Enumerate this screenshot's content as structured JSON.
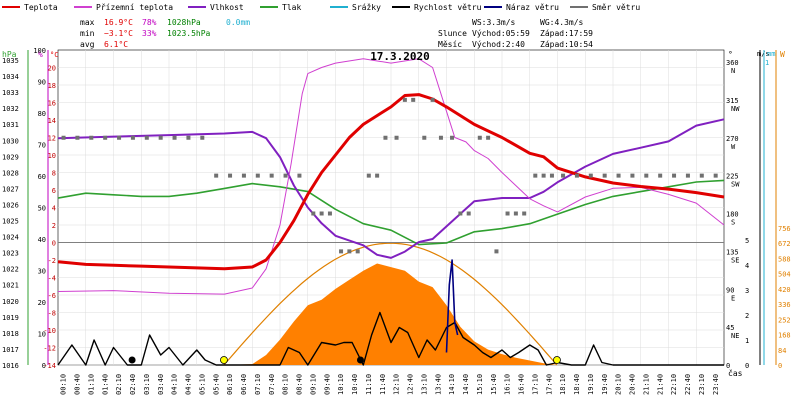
{
  "legend": {
    "items": [
      {
        "label": "Teplota",
        "color": "#e00000"
      },
      {
        "label": "Přízemní teplota",
        "color": "#d040d0"
      },
      {
        "label": "Vlhkost",
        "color": "#8020c0"
      },
      {
        "label": "Tlak",
        "color": "#30a030"
      },
      {
        "label": "Srážky",
        "color": "#20b0d0"
      },
      {
        "label": "Rychlost větru",
        "color": "#000000"
      },
      {
        "label": "Náraz větru",
        "color": "#000080"
      },
      {
        "label": "Směr větru",
        "color": "#707070"
      }
    ]
  },
  "stats": {
    "max": {
      "label": "max",
      "temp": "16.9°C",
      "hum": "78%",
      "press": "1028hPa",
      "rain": "0.0mm"
    },
    "min": {
      "label": "min",
      "temp": "−3.1°C",
      "hum": "33%",
      "press": "1023.5hPa"
    },
    "avg": {
      "label": "avg",
      "temp": "6.1°C"
    },
    "wind": {
      "ws": "WS:3.3m/s",
      "wg": "WG:4.3m/s"
    },
    "sun": {
      "label": "Slunce",
      "rise": "Východ:05:59",
      "set": "Západ:17:59"
    },
    "moon": {
      "label": "Měsíc",
      "rise": "Východ:2:40",
      "set": "Západ:10:54"
    }
  },
  "chart_data": {
    "type": "line",
    "title": "17.3.2020",
    "x_label": "čas",
    "x_ticks": [
      "00:10",
      "00:40",
      "01:10",
      "01:40",
      "02:10",
      "02:40",
      "03:10",
      "03:40",
      "04:10",
      "04:40",
      "05:10",
      "05:40",
      "06:10",
      "06:40",
      "07:10",
      "07:40",
      "08:10",
      "08:40",
      "09:10",
      "09:40",
      "10:10",
      "10:40",
      "11:10",
      "11:40",
      "12:10",
      "12:40",
      "13:10",
      "13:40",
      "14:10",
      "14:40",
      "15:10",
      "15:40",
      "16:10",
      "16:40",
      "17:10",
      "17:40",
      "18:10",
      "18:40",
      "19:10",
      "19:40",
      "20:10",
      "20:40",
      "21:10",
      "21:40",
      "22:10",
      "22:40",
      "23:10",
      "23:40"
    ],
    "axes": {
      "pressure_hpa": {
        "label": "hPa",
        "color": "#30a030",
        "ticks": [
          1016,
          1017,
          1018,
          1019,
          1020,
          1021,
          1022,
          1023,
          1024,
          1025,
          1026,
          1027,
          1028,
          1029,
          1030,
          1031,
          1032,
          1033,
          1034,
          1035
        ]
      },
      "humidity_pct": {
        "label": "%",
        "color": "#c000c0",
        "ticks": [
          0,
          10,
          20,
          30,
          40,
          50,
          60,
          70,
          80,
          90,
          100
        ]
      },
      "temperature_c": {
        "label": "°C",
        "color": "#e00000",
        "range": [
          -14,
          22
        ],
        "ticks": [
          -14,
          -12,
          -10,
          -8,
          -6,
          -4,
          -2,
          0,
          2,
          4,
          6,
          8,
          10,
          12,
          14,
          16,
          18,
          20
        ]
      },
      "wind_dir": {
        "label": "°",
        "ticks": [
          "0",
          "45",
          "90",
          "135",
          "180",
          "225",
          "270",
          "315",
          "360"
        ],
        "sub": [
          "",
          "NE",
          "E",
          "SE",
          "S",
          "SW",
          "W",
          "NW",
          "N"
        ]
      },
      "wind_ms": {
        "label": "m/s",
        "color": "#000000",
        "ticks": [
          0,
          1,
          2,
          3,
          4,
          5
        ]
      },
      "rain_mm": {
        "label": "mm",
        "color": "#20b0d0",
        "ticks": [
          1
        ]
      },
      "solar_w": {
        "label": "W",
        "color": "#e08000",
        "ticks": [
          0,
          84,
          168,
          252,
          336,
          420,
          504,
          588,
          672,
          756
        ]
      }
    },
    "series": [
      {
        "name": "Teplota",
        "color": "#e00000",
        "hours": [
          0,
          1,
          2,
          3,
          4,
          5,
          6,
          7,
          7.5,
          8,
          8.5,
          9,
          9.5,
          10,
          10.5,
          11,
          11.5,
          12,
          12.5,
          13,
          13.5,
          14,
          14.5,
          15,
          16,
          17,
          17.5,
          18,
          19,
          20,
          21,
          22,
          23,
          24
        ],
        "values": [
          -2.2,
          -2.5,
          -2.6,
          -2.7,
          -2.8,
          -2.9,
          -3.0,
          -2.8,
          -2.0,
          0,
          2.5,
          5.5,
          8,
          10,
          12,
          13.5,
          14.5,
          15.5,
          16.8,
          16.9,
          16.4,
          15.5,
          14.5,
          13.5,
          12,
          10.2,
          9.8,
          8.5,
          7.5,
          6.8,
          6.4,
          6.1,
          5.7,
          5.2
        ]
      },
      {
        "name": "Přízemní teplota",
        "color": "#d040d0",
        "hours": [
          0,
          2,
          4,
          6,
          7,
          7.5,
          8,
          8.4,
          8.8,
          9,
          9.5,
          10,
          11,
          12,
          13,
          13.5,
          14,
          14.3,
          14.7,
          15,
          15.5,
          16,
          16.5,
          17,
          17.5,
          18,
          19,
          20,
          21,
          22,
          23,
          24
        ],
        "values": [
          -5.6,
          -5.5,
          -5.8,
          -5.9,
          -5.2,
          -3,
          2,
          9,
          17,
          19.3,
          20,
          20.5,
          21,
          20.5,
          21,
          20,
          15,
          12,
          11.5,
          10.5,
          9.6,
          8,
          6.5,
          5,
          4.2,
          3.5,
          5.2,
          6.2,
          6.3,
          5.5,
          4.5,
          2
        ]
      },
      {
        "name": "Vlhkost",
        "color": "#8020c0",
        "hours": [
          0,
          2,
          4,
          6,
          7,
          7.5,
          8,
          8.5,
          9,
          9.5,
          10,
          11,
          11.5,
          12,
          12.5,
          13,
          13.5,
          14,
          14.5,
          15,
          16,
          17,
          17.5,
          18,
          19,
          20,
          21,
          22,
          23,
          24
        ],
        "values": [
          72,
          72.5,
          73,
          73.5,
          74,
          72,
          66,
          57,
          50,
          45,
          41,
          38,
          35,
          34,
          36,
          39,
          40,
          44,
          48,
          52,
          53,
          53,
          55,
          58,
          63,
          67,
          69,
          71,
          76,
          78
        ]
      },
      {
        "name": "Tlak",
        "color": "#30a030",
        "hours": [
          0,
          1,
          2,
          3,
          4,
          5,
          6,
          7,
          8,
          9,
          10,
          11,
          12,
          13,
          14,
          15,
          16,
          17,
          18,
          19,
          20,
          21,
          22,
          23,
          24
        ],
        "values": [
          1026.4,
          1026.7,
          1026.6,
          1026.5,
          1026.5,
          1026.7,
          1027.0,
          1027.3,
          1027.1,
          1026.8,
          1025.7,
          1024.8,
          1024.4,
          1023.5,
          1023.6,
          1024.3,
          1024.5,
          1024.8,
          1025.4,
          1026.0,
          1026.5,
          1026.8,
          1027.1,
          1027.4,
          1027.5
        ]
      },
      {
        "name": "Rychlost větru",
        "color": "#000000",
        "hours": [
          0,
          0.5,
          1,
          1.3,
          1.7,
          2,
          2.5,
          3,
          3.3,
          3.7,
          4,
          4.5,
          5,
          5.3,
          5.7,
          6,
          6.5,
          7,
          7.5,
          8,
          8.3,
          8.7,
          9,
          9.5,
          10,
          10.3,
          10.6,
          11,
          11.3,
          11.6,
          12,
          12.3,
          12.6,
          13,
          13.3,
          13.6,
          14,
          14.3,
          14.6,
          15,
          15.3,
          15.6,
          16,
          16.3,
          16.6,
          17,
          17.3,
          17.6,
          18,
          18.5,
          19,
          19.3,
          19.6,
          20,
          21,
          22,
          23,
          24
        ],
        "values": [
          0,
          0.8,
          0,
          1,
          0,
          0.7,
          0,
          0,
          1.2,
          0.4,
          0.7,
          0,
          0.6,
          0.2,
          0,
          0,
          0,
          0,
          0,
          0,
          0.7,
          0.5,
          0,
          0.9,
          0.8,
          0.9,
          0.9,
          0,
          1.2,
          2.1,
          0.9,
          1.5,
          1.3,
          0.3,
          1,
          0.6,
          1.5,
          1.7,
          1.1,
          0.8,
          0.5,
          0.3,
          0.6,
          0.3,
          0.5,
          0.8,
          0.6,
          0,
          0.1,
          0,
          0,
          0.8,
          0.1,
          0,
          0,
          0,
          0,
          0
        ]
      },
      {
        "name": "Náraz větru",
        "color": "#000080",
        "hours": [
          14,
          14.1,
          14.2,
          14.3,
          14.4
        ],
        "values": [
          0.5,
          3.2,
          4.2,
          1.7,
          1.2
        ]
      },
      {
        "name": "Solar",
        "color": "#ff8000",
        "hours": [
          6,
          7,
          7.5,
          8,
          8.5,
          9,
          9.5,
          10,
          10.5,
          11,
          11.5,
          12,
          12.5,
          13,
          13.5,
          14,
          14.5,
          15,
          15.5,
          16,
          16.5,
          17,
          17.5,
          18
        ],
        "values": [
          0,
          5,
          55,
          140,
          240,
          330,
          360,
          420,
          470,
          520,
          560,
          540,
          520,
          460,
          430,
          330,
          210,
          130,
          85,
          60,
          40,
          25,
          10,
          0
        ]
      }
    ],
    "points": [
      {
        "name": "Směr větru",
        "color": "#707070",
        "hours": [
          0.2,
          0.7,
          1.2,
          1.7,
          2.2,
          2.7,
          3.2,
          3.7,
          4.2,
          4.7,
          5.2,
          5.7,
          6.2,
          6.7,
          7.2,
          7.7,
          8.2,
          8.7,
          9.2,
          9.5,
          9.8,
          10.2,
          10.5,
          10.8,
          11.2,
          11.5,
          11.8,
          12.2,
          12.5,
          12.8,
          13.2,
          13.5,
          13.8,
          14.2,
          14.5,
          14.8,
          15.2,
          15.5,
          15.8,
          16.2,
          16.5,
          16.8,
          17.2,
          17.5,
          17.8,
          18.2,
          18.7,
          19.2,
          19.7,
          20.2,
          20.7,
          21.2,
          21.7,
          22.2,
          22.7,
          23.2,
          23.7
        ],
        "values": [
          270,
          270,
          270,
          270,
          270,
          270,
          270,
          270,
          270,
          270,
          270,
          225,
          225,
          225,
          225,
          225,
          225,
          225,
          180,
          180,
          180,
          135,
          135,
          135,
          225,
          225,
          270,
          270,
          315,
          315,
          270,
          315,
          270,
          270,
          180,
          180,
          270,
          270,
          135,
          180,
          180,
          180,
          225,
          225,
          225,
          225,
          225,
          225,
          225,
          225,
          225,
          225,
          225,
          225,
          225,
          225,
          225
        ]
      },
      {
        "name": "Východ/západ",
        "color": "#ffff00",
        "hours": [
          5.98,
          17.98
        ],
        "values": [
          0,
          0
        ]
      },
      {
        "name": "Měsíc",
        "color": "#000000",
        "hours": [
          2.67,
          10.9
        ],
        "values": [
          0,
          0
        ]
      }
    ]
  }
}
